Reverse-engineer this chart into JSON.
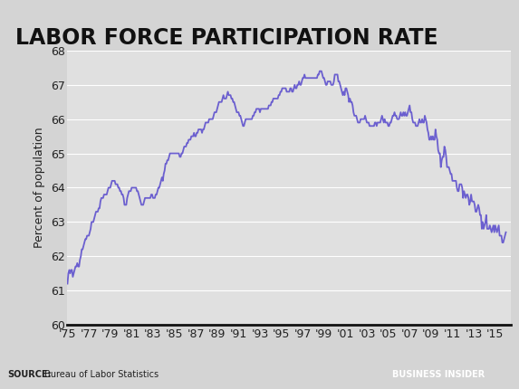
{
  "title": "LABOR FORCE PARTICIPATION RATE",
  "ylabel": "Percent of population",
  "ylim": [
    60,
    68
  ],
  "yticks": [
    60,
    61,
    62,
    63,
    64,
    65,
    66,
    67,
    68
  ],
  "line_color": "#6B5FCF",
  "fig_bg_color": "#d4d4d4",
  "plot_bg_color": "#e0e0e0",
  "footer_bg_color": "#c8c8c8",
  "source_text_bold": "SOURCE:",
  "source_text_normal": " Bureau of Labor Statistics",
  "brand_text": "BUSINESS INSIDER",
  "brand_bg": "#3a5a8a",
  "xtick_labels": [
    "'75",
    "'77",
    "'79",
    "'81",
    "'83",
    "'85",
    "'87",
    "'89",
    "'91",
    "'93",
    "'95",
    "'97",
    "'99",
    "'01",
    "'03",
    "'05",
    "'07",
    "'09",
    "'11",
    "'13",
    "'15"
  ],
  "title_fontsize": 17,
  "tick_fontsize": 9,
  "ylabel_fontsize": 9,
  "lfpr_values": [
    61.2,
    61.5,
    61.6,
    61.5,
    61.6,
    61.6,
    61.4,
    61.5,
    61.6,
    61.7,
    61.7,
    61.8,
    61.7,
    61.7,
    61.9,
    62.0,
    62.2,
    62.2,
    62.3,
    62.4,
    62.5,
    62.5,
    62.6,
    62.6,
    62.6,
    62.7,
    62.8,
    63.0,
    63.0,
    63.0,
    63.1,
    63.2,
    63.3,
    63.3,
    63.3,
    63.4,
    63.4,
    63.6,
    63.7,
    63.7,
    63.7,
    63.8,
    63.8,
    63.8,
    63.8,
    63.9,
    64.0,
    64.0,
    64.0,
    64.1,
    64.2,
    64.2,
    64.2,
    64.2,
    64.1,
    64.1,
    64.1,
    64.0,
    64.0,
    63.9,
    63.9,
    63.8,
    63.8,
    63.7,
    63.5,
    63.5,
    63.5,
    63.7,
    63.8,
    63.9,
    63.9,
    63.9,
    64.0,
    64.0,
    64.0,
    64.0,
    64.0,
    64.0,
    63.9,
    63.9,
    63.8,
    63.7,
    63.6,
    63.5,
    63.5,
    63.5,
    63.6,
    63.7,
    63.7,
    63.7,
    63.7,
    63.7,
    63.7,
    63.7,
    63.8,
    63.8,
    63.7,
    63.7,
    63.7,
    63.8,
    63.8,
    63.9,
    64.0,
    64.0,
    64.1,
    64.2,
    64.3,
    64.2,
    64.4,
    64.5,
    64.7,
    64.7,
    64.8,
    64.8,
    64.9,
    65.0,
    65.0,
    65.0,
    65.0,
    65.0,
    65.0,
    65.0,
    65.0,
    65.0,
    65.0,
    65.0,
    64.9,
    64.9,
    65.0,
    65.0,
    65.1,
    65.2,
    65.2,
    65.2,
    65.3,
    65.3,
    65.4,
    65.4,
    65.4,
    65.5,
    65.5,
    65.5,
    65.6,
    65.5,
    65.5,
    65.6,
    65.6,
    65.7,
    65.7,
    65.7,
    65.7,
    65.6,
    65.7,
    65.7,
    65.8,
    65.9,
    65.9,
    65.9,
    65.9,
    66.0,
    66.0,
    66.0,
    66.0,
    66.0,
    66.1,
    66.2,
    66.2,
    66.2,
    66.3,
    66.4,
    66.5,
    66.5,
    66.5,
    66.5,
    66.6,
    66.7,
    66.6,
    66.6,
    66.6,
    66.7,
    66.8,
    66.7,
    66.7,
    66.7,
    66.6,
    66.6,
    66.5,
    66.5,
    66.4,
    66.3,
    66.2,
    66.2,
    66.2,
    66.1,
    66.1,
    66.0,
    65.9,
    65.8,
    65.8,
    65.9,
    66.0,
    66.0,
    66.0,
    66.0,
    66.0,
    66.0,
    66.0,
    66.0,
    66.1,
    66.1,
    66.2,
    66.2,
    66.3,
    66.3,
    66.3,
    66.3,
    66.2,
    66.3,
    66.3,
    66.3,
    66.3,
    66.3,
    66.3,
    66.3,
    66.3,
    66.3,
    66.4,
    66.4,
    66.4,
    66.5,
    66.5,
    66.6,
    66.6,
    66.6,
    66.6,
    66.6,
    66.6,
    66.7,
    66.7,
    66.8,
    66.8,
    66.9,
    66.9,
    66.9,
    66.9,
    66.9,
    66.8,
    66.8,
    66.8,
    66.8,
    66.9,
    66.9,
    66.8,
    66.8,
    66.9,
    67.0,
    66.9,
    66.9,
    67.0,
    67.0,
    67.1,
    67.0,
    67.0,
    67.1,
    67.2,
    67.2,
    67.3,
    67.2,
    67.2,
    67.2,
    67.2,
    67.2,
    67.2,
    67.2,
    67.2,
    67.2,
    67.2,
    67.2,
    67.2,
    67.2,
    67.2,
    67.3,
    67.3,
    67.4,
    67.4,
    67.4,
    67.3,
    67.2,
    67.2,
    67.1,
    67.0,
    67.0,
    67.1,
    67.1,
    67.1,
    67.1,
    67.0,
    67.0,
    67.0,
    67.1,
    67.3,
    67.3,
    67.3,
    67.3,
    67.1,
    67.1,
    67.0,
    66.9,
    66.8,
    66.7,
    66.8,
    66.7,
    66.9,
    66.9,
    66.8,
    66.7,
    66.5,
    66.6,
    66.5,
    66.5,
    66.4,
    66.2,
    66.1,
    66.1,
    66.1,
    66.0,
    65.9,
    65.9,
    65.9,
    66.0,
    66.0,
    66.0,
    66.0,
    66.0,
    66.1,
    66.0,
    65.9,
    65.9,
    65.9,
    65.8,
    65.8,
    65.8,
    65.8,
    65.8,
    65.8,
    65.9,
    65.9,
    65.8,
    65.9,
    65.9,
    65.9,
    65.9,
    66.0,
    66.1,
    66.0,
    65.9,
    66.0,
    65.9,
    65.9,
    65.9,
    65.8,
    65.8,
    65.9,
    65.9,
    66.0,
    66.1,
    66.1,
    66.2,
    66.1,
    66.1,
    66.0,
    66.0,
    66.0,
    66.1,
    66.2,
    66.1,
    66.1,
    66.2,
    66.1,
    66.2,
    66.1,
    66.1,
    66.2,
    66.3,
    66.4,
    66.2,
    66.2,
    66.0,
    65.9,
    65.9,
    65.9,
    65.8,
    65.8,
    65.8,
    65.9,
    66.0,
    65.9,
    65.9,
    66.0,
    65.9,
    65.9,
    66.1,
    66.0,
    65.9,
    65.7,
    65.6,
    65.4,
    65.4,
    65.5,
    65.4,
    65.5,
    65.4,
    65.4,
    65.7,
    65.5,
    65.4,
    65.1,
    65.0,
    65.0,
    64.6,
    64.8,
    64.9,
    64.9,
    65.2,
    65.1,
    64.9,
    64.6,
    64.6,
    64.6,
    64.5,
    64.4,
    64.4,
    64.2,
    64.2,
    64.2,
    64.2,
    64.2,
    64.0,
    63.9,
    63.9,
    64.1,
    64.1,
    64.1,
    64.0,
    63.7,
    63.9,
    63.8,
    63.7,
    63.8,
    63.8,
    63.7,
    63.5,
    63.6,
    63.8,
    63.6,
    63.6,
    63.6,
    63.5,
    63.3,
    63.3,
    63.4,
    63.5,
    63.4,
    63.2,
    63.2,
    62.8,
    63.0,
    62.8,
    62.9,
    63.0,
    63.2,
    62.8,
    62.8,
    62.8,
    62.9,
    62.8,
    62.7,
    62.8,
    62.9,
    62.7,
    62.9,
    62.8,
    62.7,
    62.8,
    62.9,
    62.6,
    62.6,
    62.6,
    62.4,
    62.4,
    62.5,
    62.6,
    62.7
  ]
}
